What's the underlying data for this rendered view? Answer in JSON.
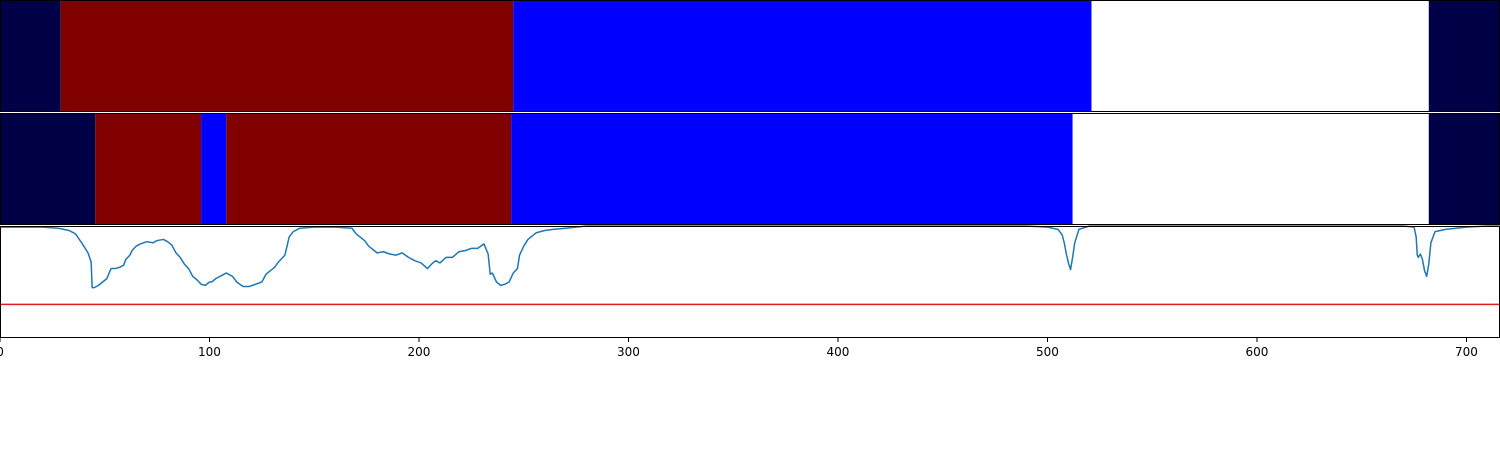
{
  "chart_data": [
    {
      "type": "segment-bar",
      "xlim": [
        0,
        716
      ],
      "segments": [
        {
          "start": 0,
          "end": 29,
          "color": "#000046"
        },
        {
          "start": 29,
          "end": 245,
          "color": "#800000"
        },
        {
          "start": 245,
          "end": 521,
          "color": "#0000ff"
        },
        {
          "start": 521,
          "end": 682,
          "color": "#ffffff"
        },
        {
          "start": 682,
          "end": 716,
          "color": "#000046"
        }
      ]
    },
    {
      "type": "segment-bar",
      "xlim": [
        0,
        716
      ],
      "segments": [
        {
          "start": 0,
          "end": 45.5,
          "color": "#000046"
        },
        {
          "start": 45.5,
          "end": 96,
          "color": "#800000"
        },
        {
          "start": 96,
          "end": 108,
          "color": "#0000ff"
        },
        {
          "start": 108,
          "end": 244,
          "color": "#800000"
        },
        {
          "start": 244,
          "end": 512,
          "color": "#0000ff"
        },
        {
          "start": 512,
          "end": 682,
          "color": "#ffffff"
        },
        {
          "start": 682,
          "end": 716,
          "color": "#000046"
        }
      ]
    },
    {
      "type": "line",
      "xlim": [
        0,
        716
      ],
      "ylim": [
        0,
        1
      ],
      "threshold": {
        "value": 0.3,
        "color": "#e41a1c"
      },
      "line_color": "#1f77b4",
      "xticks": [
        0,
        100,
        200,
        300,
        400,
        500,
        600,
        700
      ],
      "xtick_labels": [
        "0",
        "100",
        "200",
        "300",
        "400",
        "500",
        "600",
        "700"
      ],
      "series": [
        {
          "points": [
            [
              0,
              0.99
            ],
            [
              10,
              0.99
            ],
            [
              20,
              0.99
            ],
            [
              28,
              0.98
            ],
            [
              33,
              0.96
            ],
            [
              36,
              0.93
            ],
            [
              39,
              0.85
            ],
            [
              42,
              0.76
            ],
            [
              43.5,
              0.68
            ],
            [
              44,
              0.45
            ],
            [
              45,
              0.45
            ],
            [
              47,
              0.47
            ],
            [
              49,
              0.5
            ],
            [
              51,
              0.53
            ],
            [
              53,
              0.62
            ],
            [
              55,
              0.62
            ],
            [
              57,
              0.63
            ],
            [
              59,
              0.65
            ],
            [
              60,
              0.7
            ],
            [
              62,
              0.74
            ],
            [
              63,
              0.78
            ],
            [
              65,
              0.82
            ],
            [
              67,
              0.84
            ],
            [
              70,
              0.86
            ],
            [
              73,
              0.85
            ],
            [
              75,
              0.87
            ],
            [
              78,
              0.88
            ],
            [
              80,
              0.86
            ],
            [
              82,
              0.83
            ],
            [
              84,
              0.76
            ],
            [
              86,
              0.72
            ],
            [
              88,
              0.66
            ],
            [
              90,
              0.62
            ],
            [
              92,
              0.55
            ],
            [
              94,
              0.52
            ],
            [
              96,
              0.48
            ],
            [
              98,
              0.47
            ],
            [
              100,
              0.5
            ],
            [
              101,
              0.5
            ],
            [
              103,
              0.53
            ],
            [
              106,
              0.56
            ],
            [
              108,
              0.58
            ],
            [
              111,
              0.55
            ],
            [
              113,
              0.5
            ],
            [
              116,
              0.46
            ],
            [
              119,
              0.46
            ],
            [
              122,
              0.48
            ],
            [
              125,
              0.5
            ],
            [
              127,
              0.57
            ],
            [
              129,
              0.6
            ],
            [
              131,
              0.63
            ],
            [
              133,
              0.68
            ],
            [
              135,
              0.72
            ],
            [
              136,
              0.74
            ],
            [
              138,
              0.9
            ],
            [
              140,
              0.95
            ],
            [
              143,
              0.98
            ],
            [
              150,
              0.99
            ],
            [
              160,
              0.99
            ],
            [
              168,
              0.98
            ],
            [
              170,
              0.93
            ],
            [
              172,
              0.9
            ],
            [
              174,
              0.87
            ],
            [
              176,
              0.82
            ],
            [
              178,
              0.79
            ],
            [
              180,
              0.76
            ],
            [
              183,
              0.77
            ],
            [
              186,
              0.75
            ],
            [
              189,
              0.74
            ],
            [
              192,
              0.76
            ],
            [
              195,
              0.72
            ],
            [
              198,
              0.69
            ],
            [
              201,
              0.67
            ],
            [
              204,
              0.62
            ],
            [
              206,
              0.66
            ],
            [
              208,
              0.69
            ],
            [
              210,
              0.67
            ],
            [
              213,
              0.72
            ],
            [
              216,
              0.72
            ],
            [
              219,
              0.77
            ],
            [
              222,
              0.78
            ],
            [
              225,
              0.8
            ],
            [
              228,
              0.8
            ],
            [
              231,
              0.84
            ],
            [
              233,
              0.75
            ],
            [
              234,
              0.57
            ],
            [
              235,
              0.58
            ],
            [
              237,
              0.5
            ],
            [
              239,
              0.47
            ],
            [
              241,
              0.48
            ],
            [
              243,
              0.5
            ],
            [
              245,
              0.58
            ],
            [
              247,
              0.62
            ],
            [
              248,
              0.74
            ],
            [
              250,
              0.82
            ],
            [
              252,
              0.88
            ],
            [
              254,
              0.91
            ],
            [
              256,
              0.94
            ],
            [
              258,
              0.95
            ],
            [
              260,
              0.96
            ],
            [
              264,
              0.97
            ],
            [
              270,
              0.98
            ],
            [
              280,
              1.0
            ],
            [
              300,
              1.0
            ],
            [
              350,
              1.0
            ],
            [
              400,
              1.0
            ],
            [
              450,
              1.0
            ],
            [
              490,
              1.0
            ],
            [
              500,
              0.99
            ],
            [
              505,
              0.97
            ],
            [
              507,
              0.92
            ],
            [
              508,
              0.85
            ],
            [
              509,
              0.75
            ],
            [
              510,
              0.67
            ],
            [
              511,
              0.61
            ],
            [
              512,
              0.72
            ],
            [
              513,
              0.85
            ],
            [
              515,
              0.97
            ],
            [
              520,
              1.0
            ],
            [
              600,
              1.0
            ],
            [
              670,
              1.0
            ],
            [
              675,
              0.99
            ],
            [
              676,
              0.9
            ],
            [
              676.5,
              0.74
            ],
            [
              677,
              0.72
            ],
            [
              678,
              0.75
            ],
            [
              679,
              0.7
            ],
            [
              680,
              0.6
            ],
            [
              681,
              0.55
            ],
            [
              682,
              0.66
            ],
            [
              683,
              0.85
            ],
            [
              685,
              0.95
            ],
            [
              690,
              0.97
            ],
            [
              700,
              0.99
            ],
            [
              710,
              1.0
            ],
            [
              716,
              1.0
            ]
          ]
        }
      ]
    }
  ]
}
